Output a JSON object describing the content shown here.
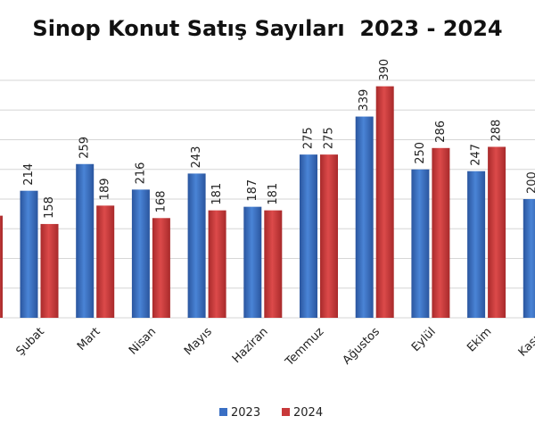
{
  "chart_data": {
    "type": "bar",
    "title": "Sinop Konut Satış Sayıları  2023 - 2024",
    "categories": [
      "Şubat",
      "Mart",
      "Nisan",
      "Mayıs",
      "Haziran",
      "Temmuz",
      "Ağustos",
      "Eylül",
      "Ekim",
      "Kasım"
    ],
    "series": [
      {
        "name": "2023",
        "color": "#3a6fc4",
        "values": [
          214,
          259,
          216,
          243,
          187,
          275,
          339,
          250,
          247,
          200
        ]
      },
      {
        "name": "2024",
        "color": "#c8393a",
        "values": [
          158,
          189,
          168,
          181,
          181,
          275,
          390,
          286,
          288,
          null
        ]
      }
    ],
    "ylim": [
      0,
      400
    ],
    "grid": true,
    "legend_position": "bottom",
    "xlabel": "",
    "ylabel": ""
  }
}
